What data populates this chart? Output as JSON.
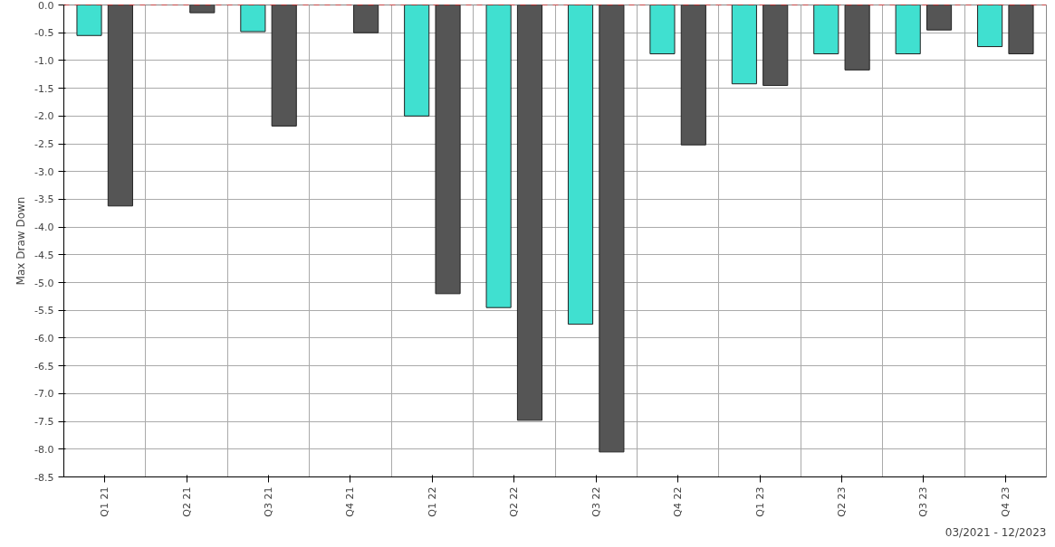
{
  "chart_data": {
    "type": "bar",
    "ylabel": "Max Draw Down",
    "categories": [
      "Q1 21",
      "Q2 21",
      "Q3 21",
      "Q4 21",
      "Q1 22",
      "Q2 22",
      "Q3 22",
      "Q4 22",
      "Q1 23",
      "Q2 23",
      "Q3 23",
      "Q4 23"
    ],
    "series": [
      {
        "color": "#40e0d0",
        "values": [
          -0.55,
          null,
          -0.48,
          null,
          -2.0,
          -5.45,
          -5.75,
          -0.88,
          -1.42,
          -0.88,
          -0.88,
          -0.75
        ]
      },
      {
        "color": "#555555",
        "values": [
          -3.62,
          -0.14,
          -2.18,
          -0.5,
          -5.2,
          -7.48,
          -8.05,
          -2.52,
          -1.45,
          -1.17,
          -0.45,
          -0.88
        ]
      }
    ],
    "ylim": [
      -8.5,
      0
    ],
    "yticks": [
      {
        "value": 0,
        "label": "0.0"
      },
      {
        "value": -0.5,
        "label": "-0.5"
      },
      {
        "value": -1,
        "label": "-1.0"
      },
      {
        "value": -1.5,
        "label": "-1.5"
      },
      {
        "value": -2,
        "label": "-2.0"
      },
      {
        "value": -2.5,
        "label": "-2.5"
      },
      {
        "value": -3,
        "label": "-3.0"
      },
      {
        "value": -3.5,
        "label": "-3.5"
      },
      {
        "value": -4,
        "label": "-4.0"
      },
      {
        "value": -4.5,
        "label": "-4.5"
      },
      {
        "value": -5,
        "label": "-5.0"
      },
      {
        "value": -5.5,
        "label": "-5.5"
      },
      {
        "value": -6,
        "label": "-6.0"
      },
      {
        "value": -6.5,
        "label": "-6.5"
      },
      {
        "value": -7,
        "label": "-7.0"
      },
      {
        "value": -7.5,
        "label": "-7.5"
      },
      {
        "value": -8,
        "label": "-8.0"
      },
      {
        "value": -8.5,
        "label": "-8.5"
      }
    ],
    "grid": true,
    "ref_lines": [
      {
        "axis": "y",
        "value": 0,
        "color": "#ff0000",
        "line_style": "dashed"
      }
    ],
    "annotations": [
      "03/2021 - 12/2023"
    ]
  }
}
